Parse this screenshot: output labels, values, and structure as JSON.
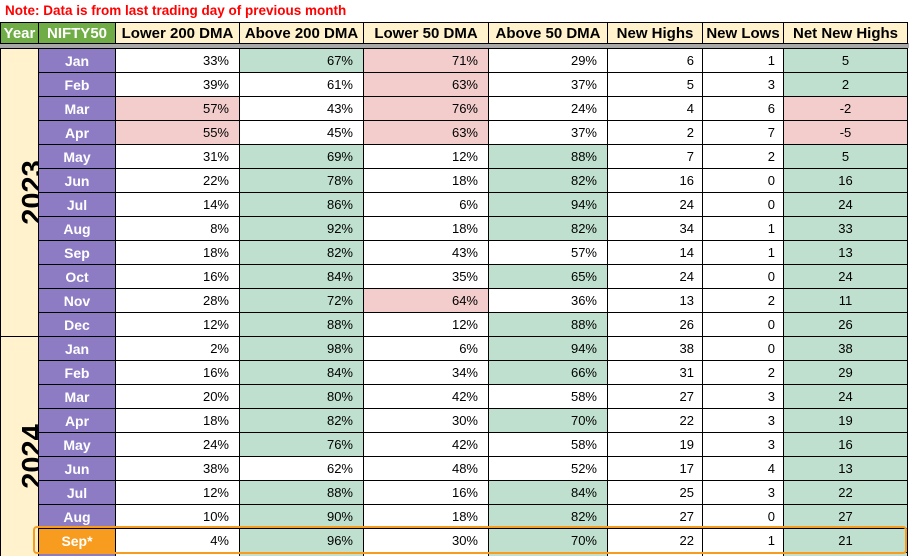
{
  "note": {
    "text": "Note: Data is from last trading day of previous month"
  },
  "colors": {
    "note_red": "#ff0000",
    "header_green_bg": "#70AD47",
    "header_cream_bg": "#FFF2CC",
    "month_purple_bg": "#8D7CC4",
    "highlight_orange": "#F79C1E",
    "cell_green": "#BFE0CE",
    "cell_pink": "#F3CDCC",
    "cell_white": "#FFFFFF",
    "pane_divider_gray": "#A8A8A8"
  },
  "table": {
    "columns": [
      {
        "label": "Year",
        "variant": "green"
      },
      {
        "label": "NIFTY50",
        "variant": "green"
      },
      {
        "label": "Lower 200 DMA",
        "variant": "cream"
      },
      {
        "label": "Above 200 DMA",
        "variant": "cream"
      },
      {
        "label": "Lower 50 DMA",
        "variant": "cream"
      },
      {
        "label": "Above 50 DMA",
        "variant": "cream"
      },
      {
        "label": "New Highs",
        "variant": "cream"
      },
      {
        "label": "New Lows",
        "variant": "cream"
      },
      {
        "label": "Net New Highs",
        "variant": "cream"
      }
    ],
    "years": [
      {
        "label": "2023",
        "rows": [
          {
            "month": "Jan",
            "month_variant": "purple",
            "cells": [
              {
                "v": "33%",
                "bg": "white"
              },
              {
                "v": "67%",
                "bg": "green"
              },
              {
                "v": "71%",
                "bg": "pink"
              },
              {
                "v": "29%",
                "bg": "white"
              },
              {
                "v": "6",
                "bg": "white"
              },
              {
                "v": "1",
                "bg": "white"
              },
              {
                "v": "5",
                "bg": "green"
              }
            ]
          },
          {
            "month": "Feb",
            "month_variant": "purple",
            "cells": [
              {
                "v": "39%",
                "bg": "white"
              },
              {
                "v": "61%",
                "bg": "white"
              },
              {
                "v": "63%",
                "bg": "pink"
              },
              {
                "v": "37%",
                "bg": "white"
              },
              {
                "v": "5",
                "bg": "white"
              },
              {
                "v": "3",
                "bg": "white"
              },
              {
                "v": "2",
                "bg": "green"
              }
            ]
          },
          {
            "month": "Mar",
            "month_variant": "purple",
            "cells": [
              {
                "v": "57%",
                "bg": "pink"
              },
              {
                "v": "43%",
                "bg": "white"
              },
              {
                "v": "76%",
                "bg": "pink"
              },
              {
                "v": "24%",
                "bg": "white"
              },
              {
                "v": "4",
                "bg": "white"
              },
              {
                "v": "6",
                "bg": "white"
              },
              {
                "v": "-2",
                "bg": "pink"
              }
            ]
          },
          {
            "month": "Apr",
            "month_variant": "purple",
            "cells": [
              {
                "v": "55%",
                "bg": "pink"
              },
              {
                "v": "45%",
                "bg": "white"
              },
              {
                "v": "63%",
                "bg": "pink"
              },
              {
                "v": "37%",
                "bg": "white"
              },
              {
                "v": "2",
                "bg": "white"
              },
              {
                "v": "7",
                "bg": "white"
              },
              {
                "v": "-5",
                "bg": "pink"
              }
            ]
          },
          {
            "month": "May",
            "month_variant": "purple",
            "cells": [
              {
                "v": "31%",
                "bg": "white"
              },
              {
                "v": "69%",
                "bg": "green"
              },
              {
                "v": "12%",
                "bg": "white"
              },
              {
                "v": "88%",
                "bg": "green"
              },
              {
                "v": "7",
                "bg": "white"
              },
              {
                "v": "2",
                "bg": "white"
              },
              {
                "v": "5",
                "bg": "green"
              }
            ]
          },
          {
            "month": "Jun",
            "month_variant": "purple",
            "cells": [
              {
                "v": "22%",
                "bg": "white"
              },
              {
                "v": "78%",
                "bg": "green"
              },
              {
                "v": "18%",
                "bg": "white"
              },
              {
                "v": "82%",
                "bg": "green"
              },
              {
                "v": "16",
                "bg": "white"
              },
              {
                "v": "0",
                "bg": "white"
              },
              {
                "v": "16",
                "bg": "green"
              }
            ]
          },
          {
            "month": "Jul",
            "month_variant": "purple",
            "cells": [
              {
                "v": "14%",
                "bg": "white"
              },
              {
                "v": "86%",
                "bg": "green"
              },
              {
                "v": "6%",
                "bg": "white"
              },
              {
                "v": "94%",
                "bg": "green"
              },
              {
                "v": "24",
                "bg": "white"
              },
              {
                "v": "0",
                "bg": "white"
              },
              {
                "v": "24",
                "bg": "green"
              }
            ]
          },
          {
            "month": "Aug",
            "month_variant": "purple",
            "cells": [
              {
                "v": "8%",
                "bg": "white"
              },
              {
                "v": "92%",
                "bg": "green"
              },
              {
                "v": "18%",
                "bg": "white"
              },
              {
                "v": "82%",
                "bg": "green"
              },
              {
                "v": "34",
                "bg": "white"
              },
              {
                "v": "1",
                "bg": "white"
              },
              {
                "v": "33",
                "bg": "green"
              }
            ]
          },
          {
            "month": "Sep",
            "month_variant": "purple",
            "cells": [
              {
                "v": "18%",
                "bg": "white"
              },
              {
                "v": "82%",
                "bg": "green"
              },
              {
                "v": "43%",
                "bg": "white"
              },
              {
                "v": "57%",
                "bg": "white"
              },
              {
                "v": "14",
                "bg": "white"
              },
              {
                "v": "1",
                "bg": "white"
              },
              {
                "v": "13",
                "bg": "green"
              }
            ]
          },
          {
            "month": "Oct",
            "month_variant": "purple",
            "cells": [
              {
                "v": "16%",
                "bg": "white"
              },
              {
                "v": "84%",
                "bg": "green"
              },
              {
                "v": "35%",
                "bg": "white"
              },
              {
                "v": "65%",
                "bg": "green"
              },
              {
                "v": "24",
                "bg": "white"
              },
              {
                "v": "0",
                "bg": "white"
              },
              {
                "v": "24",
                "bg": "green"
              }
            ]
          },
          {
            "month": "Nov",
            "month_variant": "purple",
            "cells": [
              {
                "v": "28%",
                "bg": "white"
              },
              {
                "v": "72%",
                "bg": "green"
              },
              {
                "v": "64%",
                "bg": "pink"
              },
              {
                "v": "36%",
                "bg": "white"
              },
              {
                "v": "13",
                "bg": "white"
              },
              {
                "v": "2",
                "bg": "white"
              },
              {
                "v": "11",
                "bg": "green"
              }
            ]
          },
          {
            "month": "Dec",
            "month_variant": "purple",
            "cells": [
              {
                "v": "12%",
                "bg": "white"
              },
              {
                "v": "88%",
                "bg": "green"
              },
              {
                "v": "12%",
                "bg": "white"
              },
              {
                "v": "88%",
                "bg": "green"
              },
              {
                "v": "26",
                "bg": "white"
              },
              {
                "v": "0",
                "bg": "white"
              },
              {
                "v": "26",
                "bg": "green"
              }
            ]
          }
        ]
      },
      {
        "label": "2024",
        "rows": [
          {
            "month": "Jan",
            "month_variant": "purple",
            "cells": [
              {
                "v": "2%",
                "bg": "white"
              },
              {
                "v": "98%",
                "bg": "green"
              },
              {
                "v": "6%",
                "bg": "white"
              },
              {
                "v": "94%",
                "bg": "green"
              },
              {
                "v": "38",
                "bg": "white"
              },
              {
                "v": "0",
                "bg": "white"
              },
              {
                "v": "38",
                "bg": "green"
              }
            ]
          },
          {
            "month": "Feb",
            "month_variant": "purple",
            "cells": [
              {
                "v": "16%",
                "bg": "white"
              },
              {
                "v": "84%",
                "bg": "green"
              },
              {
                "v": "34%",
                "bg": "white"
              },
              {
                "v": "66%",
                "bg": "green"
              },
              {
                "v": "31",
                "bg": "white"
              },
              {
                "v": "2",
                "bg": "white"
              },
              {
                "v": "29",
                "bg": "green"
              }
            ]
          },
          {
            "month": "Mar",
            "month_variant": "purple",
            "cells": [
              {
                "v": "20%",
                "bg": "white"
              },
              {
                "v": "80%",
                "bg": "green"
              },
              {
                "v": "42%",
                "bg": "white"
              },
              {
                "v": "58%",
                "bg": "white"
              },
              {
                "v": "27",
                "bg": "white"
              },
              {
                "v": "3",
                "bg": "white"
              },
              {
                "v": "24",
                "bg": "green"
              }
            ]
          },
          {
            "month": "Apr",
            "month_variant": "purple",
            "cells": [
              {
                "v": "18%",
                "bg": "white"
              },
              {
                "v": "82%",
                "bg": "green"
              },
              {
                "v": "30%",
                "bg": "white"
              },
              {
                "v": "70%",
                "bg": "green"
              },
              {
                "v": "22",
                "bg": "white"
              },
              {
                "v": "3",
                "bg": "white"
              },
              {
                "v": "19",
                "bg": "green"
              }
            ]
          },
          {
            "month": "May",
            "month_variant": "purple",
            "cells": [
              {
                "v": "24%",
                "bg": "white"
              },
              {
                "v": "76%",
                "bg": "green"
              },
              {
                "v": "42%",
                "bg": "white"
              },
              {
                "v": "58%",
                "bg": "white"
              },
              {
                "v": "19",
                "bg": "white"
              },
              {
                "v": "3",
                "bg": "white"
              },
              {
                "v": "16",
                "bg": "green"
              }
            ]
          },
          {
            "month": "Jun",
            "month_variant": "purple",
            "cells": [
              {
                "v": "38%",
                "bg": "white"
              },
              {
                "v": "62%",
                "bg": "white"
              },
              {
                "v": "48%",
                "bg": "white"
              },
              {
                "v": "52%",
                "bg": "white"
              },
              {
                "v": "17",
                "bg": "white"
              },
              {
                "v": "4",
                "bg": "white"
              },
              {
                "v": "13",
                "bg": "green"
              }
            ]
          },
          {
            "month": "Jul",
            "month_variant": "purple",
            "cells": [
              {
                "v": "12%",
                "bg": "white"
              },
              {
                "v": "88%",
                "bg": "green"
              },
              {
                "v": "16%",
                "bg": "white"
              },
              {
                "v": "84%",
                "bg": "green"
              },
              {
                "v": "25",
                "bg": "white"
              },
              {
                "v": "3",
                "bg": "white"
              },
              {
                "v": "22",
                "bg": "green"
              }
            ]
          },
          {
            "month": "Aug",
            "month_variant": "purple",
            "cells": [
              {
                "v": "10%",
                "bg": "white"
              },
              {
                "v": "90%",
                "bg": "green"
              },
              {
                "v": "18%",
                "bg": "white"
              },
              {
                "v": "82%",
                "bg": "green"
              },
              {
                "v": "27",
                "bg": "white"
              },
              {
                "v": "0",
                "bg": "white"
              },
              {
                "v": "27",
                "bg": "green"
              }
            ]
          },
          {
            "month": "Sep*",
            "month_variant": "orange",
            "highlight": true,
            "cells": [
              {
                "v": "4%",
                "bg": "white"
              },
              {
                "v": "96%",
                "bg": "green"
              },
              {
                "v": "30%",
                "bg": "white"
              },
              {
                "v": "70%",
                "bg": "green"
              },
              {
                "v": "22",
                "bg": "white"
              },
              {
                "v": "1",
                "bg": "white"
              },
              {
                "v": "21",
                "bg": "green"
              }
            ]
          }
        ],
        "partial_row": {
          "month": "",
          "month_variant": "purple",
          "cells": [
            {
              "v": "",
              "bg": "white"
            },
            {
              "v": "",
              "bg": "green"
            },
            {
              "v": "",
              "bg": "white"
            },
            {
              "v": "",
              "bg": "green"
            },
            {
              "v": "",
              "bg": "white"
            },
            {
              "v": "",
              "bg": "white"
            },
            {
              "v": "",
              "bg": "green"
            }
          ]
        }
      }
    ]
  }
}
